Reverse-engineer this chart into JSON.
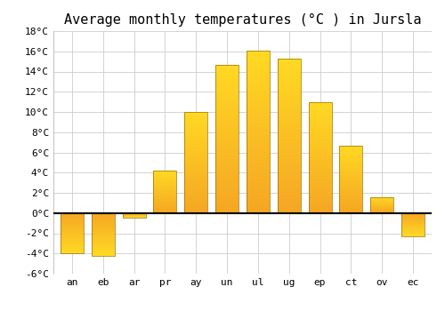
{
  "title": "Average monthly temperatures (°C ) in Jursla",
  "months": [
    "an",
    "eb",
    "ar",
    "pr",
    "ay",
    "un",
    "ul",
    "ug",
    "ep",
    "ct",
    "ov",
    "ec"
  ],
  "values": [
    -4.0,
    -4.2,
    -0.5,
    4.2,
    10.0,
    14.7,
    16.1,
    15.3,
    11.0,
    6.7,
    1.6,
    -2.3
  ],
  "bar_color_bottom": "#F5A623",
  "bar_color_top": "#FFD966",
  "bar_edge_color": "#9A7100",
  "background_color": "#ffffff",
  "grid_color": "#cccccc",
  "ylim": [
    -6,
    18
  ],
  "yticks": [
    -6,
    -4,
    -2,
    0,
    2,
    4,
    6,
    8,
    10,
    12,
    14,
    16,
    18
  ],
  "zero_line_color": "#000000",
  "title_fontsize": 11,
  "tick_fontsize": 8
}
